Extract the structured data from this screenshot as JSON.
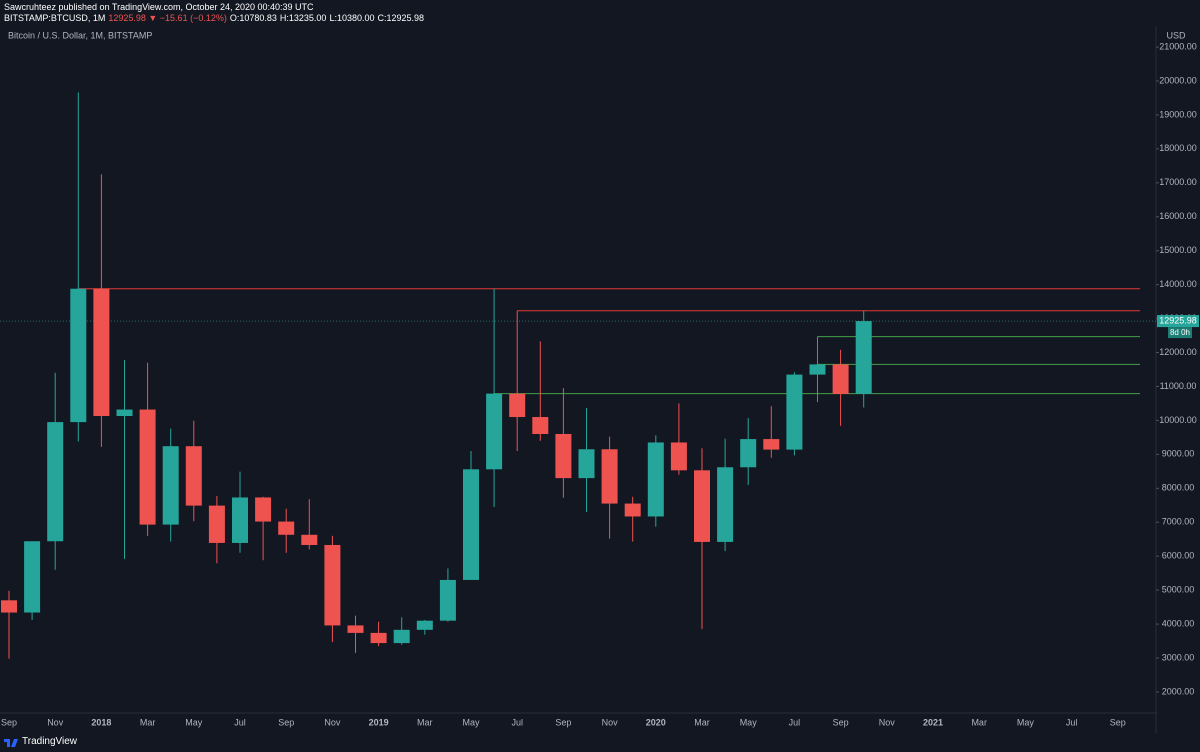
{
  "header": {
    "author_line": "Sawcruhteez published on TradingView.com, October 24, 2020 00:40:39 UTC",
    "symbol": "BITSTAMP:BTCUSD, 1M",
    "change": "12925.98 ▼ −15.61 (−0.12%)",
    "ohlc": [
      "O:10780.83",
      "H:13235.00",
      "L:10380.00",
      "C:12925.98"
    ]
  },
  "footer": {
    "brand": "TradingView"
  },
  "chart_data": {
    "type": "candlestick",
    "title": "Bitcoin / U.S. Dollar, 1M, BITSTAMP",
    "currency": "USD",
    "categories": [
      "Sep",
      null,
      "Nov",
      null,
      "2018",
      null,
      "Mar",
      null,
      "May",
      null,
      "Jul",
      null,
      "Sep",
      null,
      "Nov",
      null,
      "2019",
      null,
      "Mar",
      null,
      "May",
      null,
      "Jul",
      null,
      "Sep",
      null,
      "Nov",
      null,
      "2020",
      null,
      "Mar",
      null,
      "May",
      null,
      "Jul",
      null,
      "Sep",
      null,
      "Nov",
      null,
      "2021",
      null,
      "Mar",
      null,
      "May",
      null,
      "Jul",
      null,
      "Sep"
    ],
    "open": [
      4700,
      4340,
      6440,
      9950,
      13880,
      10130,
      10320,
      6930,
      9240,
      7490,
      6390,
      7730,
      7020,
      6630,
      6330,
      3960,
      3740,
      3440,
      3830,
      4100,
      5300,
      8560,
      10790,
      10100,
      9600,
      8300,
      9150,
      7550,
      7170,
      9350,
      8530,
      6420,
      8620,
      9450,
      9140,
      11350,
      11650,
      10780.83,
      null,
      null,
      null,
      null,
      null,
      null,
      null,
      null,
      null,
      null,
      null
    ],
    "high": [
      4980,
      6440,
      11400,
      19666,
      17250,
      11780,
      11700,
      9760,
      9990,
      7770,
      8490,
      7750,
      7400,
      7680,
      6600,
      4250,
      4070,
      4200,
      4120,
      5640,
      9100,
      13880,
      13230,
      12330,
      10950,
      10370,
      9520,
      7750,
      9560,
      10500,
      9180,
      9460,
      10070,
      10420,
      11420,
      12470,
      12080,
      13235,
      null,
      null,
      null,
      null,
      null,
      null,
      null,
      null,
      null,
      null,
      null
    ],
    "low": [
      2980,
      4120,
      5600,
      9380,
      9220,
      5920,
      6600,
      6430,
      7030,
      5790,
      6100,
      5880,
      6100,
      6200,
      3470,
      3150,
      3350,
      3390,
      3690,
      4070,
      5330,
      7450,
      9100,
      9400,
      7720,
      7300,
      6520,
      6430,
      6870,
      8400,
      3850,
      6150,
      8100,
      8900,
      8970,
      10540,
      9840,
      10380,
      null,
      null,
      null,
      null,
      null,
      null,
      null,
      null,
      null,
      null,
      null
    ],
    "close": [
      4340,
      6440,
      9950,
      13880,
      10130,
      10320,
      6930,
      9240,
      7490,
      6390,
      7730,
      7020,
      6630,
      6330,
      3960,
      3740,
      3440,
      3830,
      4100,
      5300,
      8560,
      10790,
      10100,
      9600,
      8300,
      9150,
      7550,
      7170,
      9350,
      8530,
      6420,
      8620,
      9450,
      9140,
      11350,
      11650,
      10780,
      12925.98,
      null,
      null,
      null,
      null,
      null,
      null,
      null,
      null,
      null,
      null,
      null
    ],
    "up_color": "#26a69a",
    "down_color": "#ef5350",
    "levels": [
      {
        "value": 13880,
        "color": "#e53935"
      },
      {
        "value": 13230,
        "color": "#e53935"
      },
      {
        "value": 12470,
        "color": "#43a047"
      },
      {
        "value": 11650,
        "color": "#43a047"
      },
      {
        "value": 10790,
        "color": "#43a047"
      }
    ],
    "last_price": 12925.98,
    "countdown": "8d 0h",
    "ylim": [
      1380,
      21620
    ],
    "yticks": [
      {
        "value": 2000,
        "label": "2000.00"
      },
      {
        "value": 3000,
        "label": "3000.00"
      },
      {
        "value": 4000,
        "label": "4000.00"
      },
      {
        "value": 5000,
        "label": "5000.00"
      },
      {
        "value": 6000,
        "label": "6000.00"
      },
      {
        "value": 7000,
        "label": "7000.00"
      },
      {
        "value": 8000,
        "label": "8000.00"
      },
      {
        "value": 9000,
        "label": "9000.00"
      },
      {
        "value": 10000,
        "label": "10000.00"
      },
      {
        "value": 11000,
        "label": "11000.00"
      },
      {
        "value": 12000,
        "label": "12000.00"
      },
      {
        "value": 13000,
        "label": "13000.00"
      },
      {
        "value": 14000,
        "label": "14000.00"
      },
      {
        "value": 15000,
        "label": "15000.00"
      },
      {
        "value": 16000,
        "label": "16000.00"
      },
      {
        "value": 17000,
        "label": "17000.00"
      },
      {
        "value": 18000,
        "label": "18000.00"
      },
      {
        "value": 19000,
        "label": "19000.00"
      },
      {
        "value": 20000,
        "label": "20000.00"
      },
      {
        "value": 21000,
        "label": "21000.00"
      }
    ],
    "grid": false
  }
}
